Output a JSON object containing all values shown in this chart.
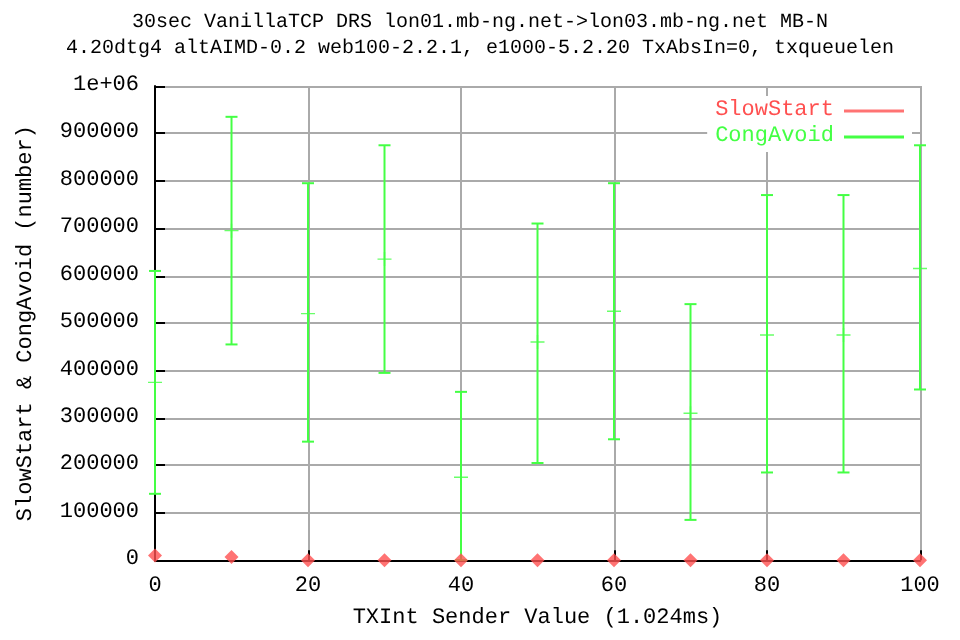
{
  "chart_data": {
    "type": "scatter",
    "title": "30sec VanillaTCP DRS lon01.mb-ng.net->lon03.mb-ng.net MB-N",
    "subtitle": "4.20dtg4 altAIMD-0.2 web100-2.2.1, e1000-5.2.20 TxAbsIn=0, txqueuelen",
    "xlabel": "TXInt Sender Value (1.024ms)",
    "ylabel": "SlowStart & CongAvoid (number)",
    "x": [
      0,
      10,
      20,
      30,
      40,
      50,
      60,
      70,
      80,
      90,
      100
    ],
    "series": [
      {
        "name": "SlowStart",
        "color": "#ff5050",
        "marker": "diamond",
        "values": [
          10000,
          7000,
          0,
          0,
          0,
          0,
          0,
          0,
          0,
          0,
          0
        ]
      },
      {
        "name": "CongAvoid",
        "color": "#44ff44",
        "marker": "cross",
        "values": [
          375000,
          695000,
          520000,
          635000,
          175000,
          460000,
          525000,
          310000,
          475000,
          475000,
          615000
        ],
        "errors": [
          [
            140000,
            610000
          ],
          [
            455000,
            935000
          ],
          [
            250000,
            795000
          ],
          [
            395000,
            875000
          ],
          [
            0,
            355000
          ],
          [
            205000,
            710000
          ],
          [
            255000,
            795000
          ],
          [
            85000,
            540000
          ],
          [
            185000,
            770000
          ],
          [
            185000,
            770000
          ],
          [
            360000,
            875000
          ]
        ]
      }
    ],
    "xlim": [
      0,
      100
    ],
    "xticks": [
      0,
      20,
      40,
      60,
      80,
      100
    ],
    "ylim": [
      0,
      1000000
    ],
    "yticks": [
      0,
      100000,
      200000,
      300000,
      400000,
      500000,
      600000,
      700000,
      800000,
      900000,
      {
        "value": 1000000,
        "label": "1e+06"
      }
    ],
    "grid": true,
    "legend": "top right"
  }
}
